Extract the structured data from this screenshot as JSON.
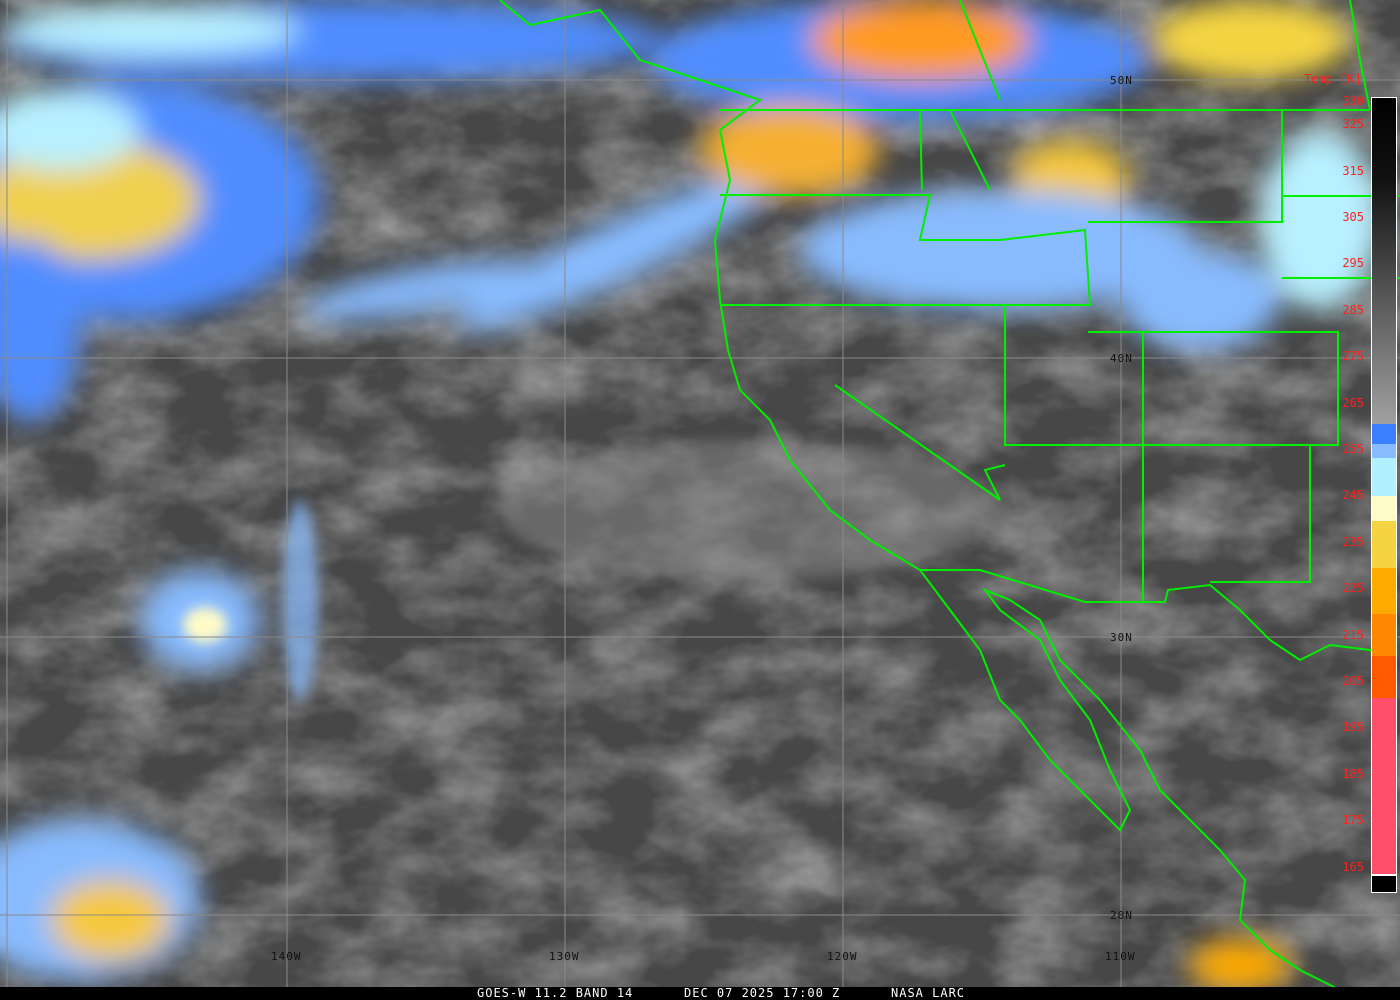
{
  "caption": {
    "satellite": "GOES-W 11.2 BAND 14",
    "datetime": "DEC 07 2025 17:00 Z",
    "credit": "NASA LARC"
  },
  "colorbar": {
    "title": "Temp [K]",
    "labels": [
      "330",
      "325",
      "315",
      "305",
      "295",
      "285",
      "275",
      "265",
      "255",
      "245",
      "235",
      "225",
      "215",
      "205",
      "195",
      "185",
      "175",
      "165"
    ],
    "segments": [
      {
        "from": 330,
        "to": 262,
        "color": "gradient #000000→#a0a0a0"
      },
      {
        "from": 262,
        "to": 258,
        "color": "#3a7fff"
      },
      {
        "from": 258,
        "to": 255,
        "color": "#88bbff"
      },
      {
        "from": 255,
        "to": 248,
        "color": "#b0f0ff"
      },
      {
        "from": 248,
        "to": 243,
        "color": "#fffbc8"
      },
      {
        "from": 243,
        "to": 233,
        "color": "#f5d442"
      },
      {
        "from": 233,
        "to": 223,
        "color": "#ffaa00"
      },
      {
        "from": 223,
        "to": 214,
        "color": "#ff8800"
      },
      {
        "from": 214,
        "to": 205,
        "color": "#ff5a00"
      },
      {
        "from": 205,
        "to": 167,
        "color": "#ff4f6a"
      },
      {
        "from": 167,
        "to": 163,
        "color": "#000000"
      }
    ]
  },
  "grid": {
    "latitudes": [
      "50N",
      "40N",
      "30N",
      "20N"
    ],
    "longitudes": [
      "140W",
      "130W",
      "120W",
      "110W"
    ]
  },
  "colors": {
    "boundaries": "#00ee00",
    "labels": "#ff2020",
    "grid": "#8a8a8a"
  }
}
